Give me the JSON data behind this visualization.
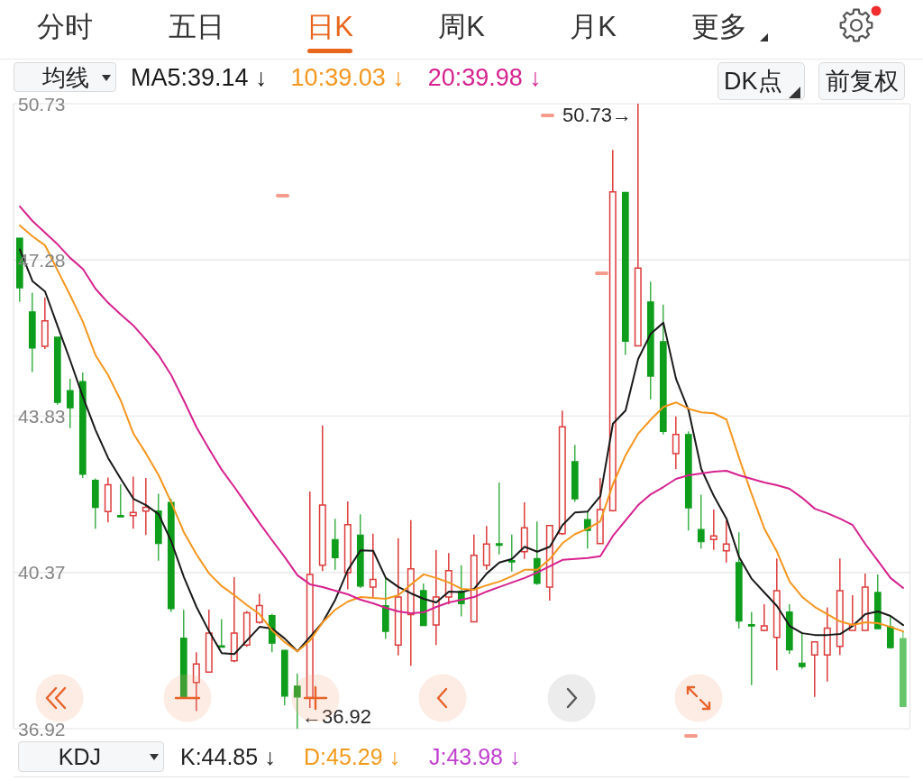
{
  "chart_data": {
    "type": "candlestick",
    "categories": [
      null,
      null,
      null,
      null,
      null,
      null,
      null,
      null,
      null,
      null,
      null,
      null,
      null,
      null,
      null,
      null,
      null,
      null,
      null,
      null,
      null,
      null,
      null,
      null,
      null,
      null,
      null,
      null,
      null,
      null,
      null,
      null,
      null,
      null,
      null,
      null,
      null,
      null,
      null,
      null,
      null,
      null,
      null,
      null,
      null,
      null,
      null,
      null,
      null,
      null,
      null,
      null,
      null,
      null,
      null,
      null,
      null,
      null,
      null,
      null,
      null,
      null,
      null,
      null,
      null,
      null,
      null,
      null,
      null,
      null,
      null
    ],
    "ohlc": [
      [
        47.76,
        47.76,
        46.35,
        46.66
      ],
      [
        46.13,
        46.55,
        44.8,
        45.33
      ],
      [
        45.37,
        46.45,
        45.31,
        45.93
      ],
      [
        45.57,
        45.57,
        44.08,
        44.13
      ],
      [
        44.39,
        44.65,
        43.56,
        44.01
      ],
      [
        44.59,
        44.79,
        42.46,
        42.54
      ],
      [
        42.41,
        42.45,
        41.34,
        41.81
      ],
      [
        41.72,
        42.47,
        41.48,
        42.31
      ],
      [
        41.63,
        42.32,
        41.6,
        41.6
      ],
      [
        41.63,
        42.49,
        41.34,
        41.7
      ],
      [
        41.73,
        42.46,
        41.2,
        41.81
      ],
      [
        41.73,
        42.11,
        40.63,
        41.01
      ],
      [
        41.92,
        42.0,
        39.5,
        39.57
      ],
      [
        38.92,
        39.55,
        37.62,
        37.62
      ],
      [
        37.94,
        38.61,
        37.31,
        38.35
      ],
      [
        38.17,
        39.55,
        38.17,
        39.03
      ],
      [
        38.74,
        39.34,
        38.71,
        38.73
      ],
      [
        38.42,
        40.27,
        38.39,
        39.03
      ],
      [
        38.77,
        39.52,
        38.73,
        39.48
      ],
      [
        39.27,
        39.9,
        39.24,
        39.64
      ],
      [
        39.42,
        39.46,
        38.61,
        38.81
      ],
      [
        38.65,
        38.67,
        37.44,
        37.64
      ],
      [
        37.86,
        38.14,
        36.92,
        37.62
      ],
      [
        37.61,
        42.16,
        37.38,
        40.33
      ],
      [
        40.53,
        43.62,
        40.4,
        41.86
      ],
      [
        41.1,
        41.56,
        40.43,
        40.7
      ],
      [
        40.37,
        41.94,
        40.0,
        41.43
      ],
      [
        41.2,
        41.66,
        40.03,
        40.07
      ],
      [
        40.05,
        41.23,
        39.8,
        40.22
      ],
      [
        39.64,
        40.27,
        38.91,
        39.07
      ],
      [
        38.77,
        41.13,
        38.54,
        39.83
      ],
      [
        39.44,
        41.53,
        38.31,
        40.45
      ],
      [
        39.97,
        40.13,
        39.19,
        39.2
      ],
      [
        39.21,
        40.87,
        38.77,
        39.83
      ],
      [
        39.83,
        40.8,
        39.67,
        40.41
      ],
      [
        39.95,
        40.53,
        39.4,
        39.68
      ],
      [
        39.28,
        41.21,
        39.27,
        40.75
      ],
      [
        40.53,
        41.4,
        40.43,
        41.0
      ],
      [
        41.0,
        42.36,
        40.77,
        40.98
      ],
      [
        40.63,
        41.21,
        40.39,
        40.61
      ],
      [
        40.83,
        41.92,
        40.67,
        41.36
      ],
      [
        40.68,
        41.5,
        40.1,
        40.13
      ],
      [
        40.05,
        41.41,
        39.75,
        41.41
      ],
      [
        41.23,
        43.95,
        41.2,
        43.59
      ],
      [
        42.82,
        43.19,
        41.93,
        42.0
      ],
      [
        41.54,
        41.73,
        40.9,
        41.3
      ],
      [
        41.01,
        42.46,
        41.0,
        41.76
      ],
      [
        41.74,
        49.71,
        41.72,
        48.78
      ],
      [
        48.77,
        48.77,
        45.18,
        45.48
      ],
      [
        45.38,
        50.73,
        45.38,
        47.1
      ],
      [
        46.35,
        46.8,
        44.2,
        44.71
      ],
      [
        45.47,
        46.29,
        43.42,
        43.49
      ],
      [
        43.0,
        43.82,
        42.66,
        43.42
      ],
      [
        43.42,
        43.49,
        41.3,
        41.8
      ],
      [
        41.32,
        42.09,
        40.9,
        41.05
      ],
      [
        41.1,
        41.76,
        40.87,
        41.18
      ],
      [
        40.85,
        41.52,
        40.59,
        41.0
      ],
      [
        40.59,
        41.26,
        39.13,
        39.3
      ],
      [
        39.21,
        39.5,
        37.88,
        39.2
      ],
      [
        39.09,
        39.67,
        39.07,
        39.19
      ],
      [
        38.94,
        40.68,
        38.21,
        39.97
      ],
      [
        39.5,
        39.67,
        38.57,
        38.66
      ],
      [
        38.37,
        39.04,
        38.24,
        38.29
      ],
      [
        38.55,
        38.84,
        37.62,
        38.84
      ],
      [
        38.55,
        39.6,
        37.96,
        39.14
      ],
      [
        38.74,
        40.68,
        38.55,
        39.97
      ],
      [
        39.09,
        39.87,
        39.09,
        39.21
      ],
      [
        39.09,
        40.35,
        39.09,
        40.05
      ],
      [
        39.93,
        40.33,
        39.13,
        39.13
      ],
      [
        39.17,
        39.39,
        38.69,
        38.71
      ],
      [
        38.91,
        39.09,
        37.41,
        37.41
      ]
    ],
    "colors": [
      "#0f9d1c",
      "#0f9d1c",
      "#dd3b3b",
      "#0f9d1c",
      "#0f9d1c",
      "#0f9d1c",
      "#0f9d1c",
      "#dd3b3b",
      "#0f9d1c",
      "#dd3b3b",
      "#dd3b3b",
      "#0f9d1c",
      "#0f9d1c",
      "#0f9d1c",
      "#dd3b3b",
      "#dd3b3b",
      "#0f9d1c",
      "#dd3b3b",
      "#dd3b3b",
      "#dd3b3b",
      "#0f9d1c",
      "#0f9d1c",
      "#0f9d1c",
      "#dd3b3b",
      "#dd3b3b",
      "#0f9d1c",
      "#dd3b3b",
      "#0f9d1c",
      "#dd3b3b",
      "#0f9d1c",
      "#dd3b3b",
      "#dd3b3b",
      "#0f9d1c",
      "#dd3b3b",
      "#dd3b3b",
      "#0f9d1c",
      "#dd3b3b",
      "#dd3b3b",
      "#0f9d1c",
      "#0f9d1c",
      "#dd3b3b",
      "#0f9d1c",
      "#dd3b3b",
      "#dd3b3b",
      "#0f9d1c",
      "#0f9d1c",
      "#dd3b3b",
      "#dd3b3b",
      "#0f9d1c",
      "#dd3b3b",
      "#0f9d1c",
      "#0f9d1c",
      "#dd3b3b",
      "#0f9d1c",
      "#0f9d1c",
      "#dd3b3b",
      "#dd3b3b",
      "#0f9d1c",
      "#0f9d1c",
      "#dd3b3b",
      "#dd3b3b",
      "#0f9d1c",
      "#0f9d1c",
      "#dd3b3b",
      "#dd3b3b",
      "#dd3b3b",
      "#dd3b3b",
      "#dd3b3b",
      "#0f9d1c",
      "#0f9d1c",
      "#66c56a"
    ],
    "series": [
      {
        "name": "MA5:39.14 ↓",
        "type": "line",
        "color": "#1a1a1a",
        "values": [
          47.51,
          46.81,
          46.58,
          45.81,
          45.05,
          44.25,
          43.52,
          42.9,
          42.44,
          42.0,
          41.86,
          41.66,
          41.06,
          40.27,
          39.61,
          39.07,
          38.59,
          38.57,
          38.87,
          39.17,
          39.13,
          38.91,
          38.63,
          38.95,
          39.27,
          39.77,
          40.43,
          40.86,
          40.85,
          40.25,
          40.05,
          39.91,
          39.79,
          39.71,
          39.95,
          39.94,
          40.01,
          40.35,
          40.59,
          40.67,
          40.94,
          40.83,
          40.94,
          41.42,
          41.7,
          41.72,
          42.06,
          43.66,
          43.95,
          45.09,
          45.65,
          45.89,
          44.65,
          43.95,
          42.66,
          42.06,
          41.56,
          40.71,
          40.23,
          39.93,
          39.63,
          39.19,
          39.03,
          38.99,
          38.99,
          39.01,
          39.19,
          39.45,
          39.51,
          39.41,
          39.21
        ]
      },
      {
        "name": "10:39.03 ↓",
        "type": "line",
        "color": "#f5961e",
        "values": [
          48.04,
          47.8,
          47.6,
          47.04,
          46.49,
          45.91,
          45.17,
          44.73,
          44.17,
          43.44,
          43.0,
          42.52,
          41.92,
          41.26,
          40.77,
          40.35,
          40.07,
          39.87,
          39.65,
          39.45,
          39.09,
          38.83,
          38.63,
          38.87,
          39.27,
          39.55,
          39.73,
          39.83,
          39.81,
          39.79,
          39.87,
          40.11,
          40.33,
          40.25,
          40.15,
          40.01,
          39.99,
          40.09,
          40.17,
          40.29,
          40.43,
          40.43,
          40.67,
          41.02,
          41.22,
          41.34,
          41.5,
          42.32,
          42.96,
          43.44,
          43.75,
          44.03,
          44.13,
          43.99,
          43.91,
          43.89,
          43.75,
          42.9,
          42.1,
          41.34,
          40.83,
          40.17,
          39.83,
          39.61,
          39.45,
          39.29,
          39.21,
          39.27,
          39.25,
          39.17,
          39.07
        ]
      },
      {
        "name": "20:39.98 ↓",
        "type": "line",
        "color": "#d6218e",
        "values": [
          48.46,
          48.14,
          47.88,
          47.62,
          47.32,
          47.08,
          46.64,
          46.33,
          46.07,
          45.83,
          45.51,
          45.17,
          44.73,
          44.17,
          43.58,
          43.1,
          42.64,
          42.26,
          41.86,
          41.46,
          41.08,
          40.71,
          40.31,
          40.11,
          40.05,
          39.97,
          39.89,
          39.77,
          39.69,
          39.59,
          39.51,
          39.47,
          39.49,
          39.61,
          39.71,
          39.77,
          39.83,
          39.95,
          40.05,
          40.15,
          40.25,
          40.37,
          40.51,
          40.65,
          40.67,
          40.69,
          40.73,
          41.18,
          41.52,
          41.86,
          42.1,
          42.26,
          42.44,
          42.52,
          42.56,
          42.6,
          42.62,
          42.52,
          42.44,
          42.36,
          42.3,
          42.22,
          42.02,
          41.78,
          41.68,
          41.56,
          41.42,
          41.0,
          40.63,
          40.25,
          40.03
        ]
      }
    ],
    "ylim": [
      36.92,
      50.73
    ],
    "yticks": [
      36.92,
      40.37,
      43.83,
      47.28,
      50.73
    ],
    "grid": "y",
    "legend": "top left",
    "tick_labels": "y",
    "annotations": [
      "分时",
      "五日",
      "日K",
      "周K",
      "月K",
      "更多",
      "均线",
      "DK点",
      "前复权",
      "KDJ",
      "K:44.85 ↓",
      "D:45.29 ↓",
      "J:43.98 ↓",
      "50.73→",
      "←36.92"
    ]
  }
}
